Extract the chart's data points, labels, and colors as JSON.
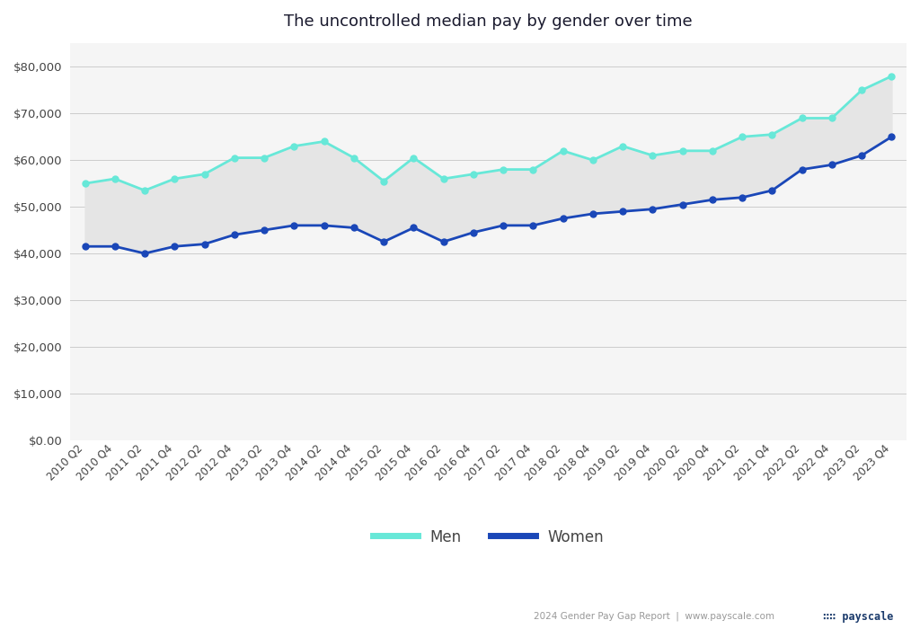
{
  "title": "The uncontrolled median pay by gender over time",
  "x_labels": [
    "2010 Q2",
    "2010 Q4",
    "2011 Q2",
    "2011 Q4",
    "2012 Q2",
    "2012 Q4",
    "2013 Q2",
    "2013 Q4",
    "2014 Q2",
    "2014 Q4",
    "2015 Q2",
    "2015 Q4",
    "2016 Q2",
    "2016 Q4",
    "2017 Q2",
    "2017 Q4",
    "2018 Q2",
    "2018 Q4",
    "2019 Q2",
    "2019 Q4",
    "2020 Q2",
    "2020 Q4",
    "2021 Q2",
    "2021 Q4",
    "2022 Q2",
    "2022 Q4",
    "2023 Q2",
    "2023 Q4"
  ],
  "men": [
    55000,
    56000,
    53500,
    56000,
    57000,
    60500,
    60500,
    63000,
    64000,
    60500,
    55500,
    60500,
    56000,
    57000,
    58000,
    58000,
    62000,
    60000,
    63000,
    61000,
    62000,
    62000,
    65000,
    65500,
    69000,
    69000,
    75000,
    78000
  ],
  "women": [
    41500,
    41500,
    40000,
    41500,
    42000,
    44000,
    45000,
    46000,
    46000,
    45500,
    42500,
    45500,
    42500,
    44500,
    46000,
    46000,
    47500,
    48500,
    49000,
    49500,
    50500,
    51500,
    52000,
    53500,
    58000,
    59000,
    61000,
    65000
  ],
  "men_color": "#67E8D8",
  "women_color": "#1A47B8",
  "fill_color": "#E5E5E5",
  "figure_bg": "#FFFFFF",
  "axes_bg": "#F5F5F5",
  "ylim": [
    0,
    85000
  ],
  "yticks": [
    0,
    10000,
    20000,
    30000,
    40000,
    50000,
    60000,
    70000,
    80000
  ],
  "footer_left": "2024 Gender Pay Gap Report  |  www.payscale.com",
  "legend_men": "Men",
  "legend_women": "Women",
  "title_fontsize": 13,
  "tick_label_color": "#444444",
  "grid_color": "#CCCCCC"
}
